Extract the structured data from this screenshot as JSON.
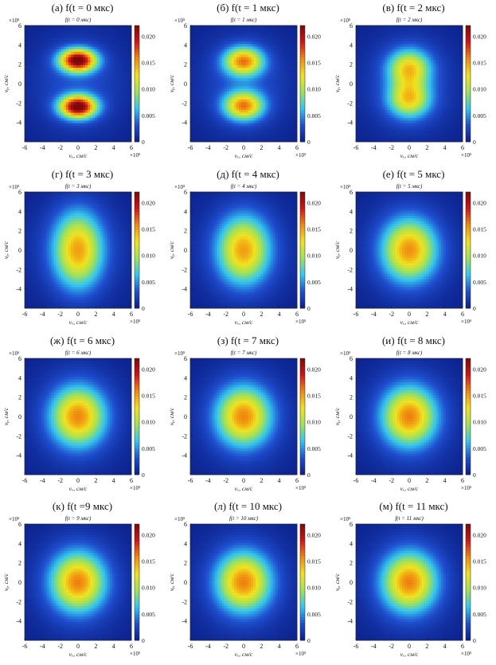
{
  "figure": {
    "type": "heatmap-grid",
    "x_axis_label": "vₓ, см/с",
    "y_axis_label": "vᵧ, см/с",
    "axis_exponent": "×10⁵",
    "x_ticks": [
      -6,
      -4,
      -2,
      0,
      2,
      4,
      6
    ],
    "y_ticks": [
      -4,
      -2,
      0,
      2,
      4,
      6
    ],
    "colorbar_ticks": [
      "0",
      "0.005",
      "0.010",
      "0.015",
      "0.020"
    ],
    "colorbar_range": [
      0,
      0.022
    ],
    "colormap": [
      "#0b1f8a",
      "#1f4fd0",
      "#33c6f0",
      "#9ee25a",
      "#f2e21e",
      "#f08a10",
      "#d2141b",
      "#7a0a0a"
    ]
  },
  "chart_data": [
    {
      "type": "heatmap",
      "title": "(а) f(t = 0 мкс)",
      "inner_title": "f(t = 0 мкс)",
      "t_us": 0,
      "xlabel": "vₓ, см/с",
      "ylabel": "vᵧ, см/с",
      "xlim": [
        -6,
        6
      ],
      "ylim": [
        -6,
        6
      ],
      "zlim": [
        0,
        0.022
      ],
      "blobs": [
        {
          "x": 0,
          "y": 2.4,
          "sx": 1.4,
          "sy": 0.8,
          "peak": 0.021
        },
        {
          "x": 0,
          "y": -2.4,
          "sx": 1.4,
          "sy": 0.8,
          "peak": 0.021
        }
      ],
      "background": 0.003
    },
    {
      "type": "heatmap",
      "title": "(б) f(t = 1 мкс)",
      "inner_title": "f(t = 1 мкс)",
      "t_us": 1,
      "xlabel": "vₓ, см/с",
      "ylabel": "vᵧ, см/с",
      "xlim": [
        -6,
        6
      ],
      "ylim": [
        -6,
        6
      ],
      "zlim": [
        0,
        0.022
      ],
      "blobs": [
        {
          "x": 0,
          "y": 2.3,
          "sx": 1.5,
          "sy": 1.0,
          "peak": 0.014
        },
        {
          "x": 0,
          "y": -2.3,
          "sx": 1.5,
          "sy": 1.0,
          "peak": 0.014
        }
      ],
      "background": 0.003
    },
    {
      "type": "heatmap",
      "title": "(в) f(t = 2 мкс)",
      "inner_title": "f(t = 2 мкс)",
      "t_us": 2,
      "xlabel": "vₓ, см/с",
      "ylabel": "vᵧ, см/с",
      "xlim": [
        -6,
        6
      ],
      "ylim": [
        -6,
        6
      ],
      "zlim": [
        0,
        0.022
      ],
      "blobs": [
        {
          "x": 0,
          "y": 1.6,
          "sx": 1.6,
          "sy": 1.3,
          "peak": 0.011
        },
        {
          "x": 0,
          "y": -1.6,
          "sx": 1.6,
          "sy": 1.3,
          "peak": 0.011
        }
      ],
      "background": 0.003
    },
    {
      "type": "heatmap",
      "title": "(г) f(t = 3 мкс)",
      "inner_title": "f(t = 3 мкс)",
      "t_us": 3,
      "xlabel": "vₓ, см/с",
      "ylabel": "vᵧ, см/с",
      "xlim": [
        -6,
        6
      ],
      "ylim": [
        -6,
        6
      ],
      "zlim": [
        0,
        0.022
      ],
      "blobs": [
        {
          "x": 0,
          "y": 0,
          "sx": 1.8,
          "sy": 2.6,
          "peak": 0.012
        }
      ],
      "background": 0.003
    },
    {
      "type": "heatmap",
      "title": "(д) f(t = 4 мкс)",
      "inner_title": "f(t = 4 мкс)",
      "t_us": 4,
      "xlabel": "vₓ, см/с",
      "ylabel": "vᵧ, см/с",
      "xlim": [
        -6,
        6
      ],
      "ylim": [
        -6,
        6
      ],
      "zlim": [
        0,
        0.022
      ],
      "blobs": [
        {
          "x": 0,
          "y": 0,
          "sx": 1.9,
          "sy": 2.3,
          "peak": 0.012
        }
      ],
      "background": 0.003
    },
    {
      "type": "heatmap",
      "title": "(е) f(t = 5 мкс)",
      "inner_title": "f(t = 5 мкс)",
      "t_us": 5,
      "xlabel": "vₓ, см/с",
      "ylabel": "vᵧ, см/с",
      "xlim": [
        -6,
        6
      ],
      "ylim": [
        -6,
        6
      ],
      "zlim": [
        0,
        0.022
      ],
      "blobs": [
        {
          "x": 0,
          "y": 0,
          "sx": 2.0,
          "sy": 2.1,
          "peak": 0.0125
        }
      ],
      "background": 0.003
    },
    {
      "type": "heatmap",
      "title": "(ж) f(t = 6 мкс)",
      "inner_title": "f(t = 6 мкс)",
      "t_us": 6,
      "xlabel": "vₓ, см/с",
      "ylabel": "vᵧ, см/с",
      "xlim": [
        -6,
        6
      ],
      "ylim": [
        -6,
        6
      ],
      "zlim": [
        0,
        0.022
      ],
      "blobs": [
        {
          "x": 0,
          "y": 0,
          "sx": 2.0,
          "sy": 2.0,
          "peak": 0.0128
        }
      ],
      "background": 0.003
    },
    {
      "type": "heatmap",
      "title": "(з) f(t = 7 мкс)",
      "inner_title": "f(t = 7 мкс)",
      "t_us": 7,
      "xlabel": "vₓ, см/с",
      "ylabel": "vᵧ, см/с",
      "xlim": [
        -6,
        6
      ],
      "ylim": [
        -6,
        6
      ],
      "zlim": [
        0,
        0.022
      ],
      "blobs": [
        {
          "x": 0,
          "y": 0,
          "sx": 2.0,
          "sy": 2.0,
          "peak": 0.0128
        }
      ],
      "background": 0.003
    },
    {
      "type": "heatmap",
      "title": "(и) f(t = 8 мкс)",
      "inner_title": "f(t = 8 мкс)",
      "t_us": 8,
      "xlabel": "vₓ, см/с",
      "ylabel": "vᵧ, см/с",
      "xlim": [
        -6,
        6
      ],
      "ylim": [
        -6,
        6
      ],
      "zlim": [
        0,
        0.022
      ],
      "blobs": [
        {
          "x": 0,
          "y": 0,
          "sx": 2.0,
          "sy": 2.0,
          "peak": 0.013
        }
      ],
      "background": 0.003
    },
    {
      "type": "heatmap",
      "title": "(к) f(t =9 мкс)",
      "inner_title": "f(t = 9 мкс)",
      "t_us": 9,
      "xlabel": "vₓ, см/с",
      "ylabel": "vᵧ, см/с",
      "xlim": [
        -6,
        6
      ],
      "ylim": [
        -6,
        6
      ],
      "zlim": [
        0,
        0.022
      ],
      "blobs": [
        {
          "x": 0,
          "y": 0,
          "sx": 2.0,
          "sy": 2.0,
          "peak": 0.013
        }
      ],
      "background": 0.003
    },
    {
      "type": "heatmap",
      "title": "(л) f(t = 10 мкс)",
      "inner_title": "f(t = 10 мкс)",
      "t_us": 10,
      "xlabel": "vₓ, см/с",
      "ylabel": "vᵧ, см/с",
      "xlim": [
        -6,
        6
      ],
      "ylim": [
        -6,
        6
      ],
      "zlim": [
        0,
        0.022
      ],
      "blobs": [
        {
          "x": 0,
          "y": 0,
          "sx": 2.0,
          "sy": 2.0,
          "peak": 0.013
        }
      ],
      "background": 0.003
    },
    {
      "type": "heatmap",
      "title": "(м) f(t = 11 мкс)",
      "inner_title": "f(t = 11 мкс)",
      "t_us": 11,
      "xlabel": "vₓ, см/с",
      "ylabel": "vᵧ, см/с",
      "xlim": [
        -6,
        6
      ],
      "ylim": [
        -6,
        6
      ],
      "zlim": [
        0,
        0.022
      ],
      "blobs": [
        {
          "x": 0,
          "y": 0,
          "sx": 2.0,
          "sy": 2.0,
          "peak": 0.013
        }
      ],
      "background": 0.003
    }
  ]
}
